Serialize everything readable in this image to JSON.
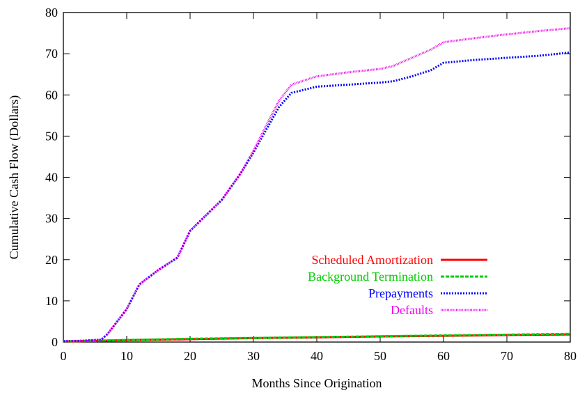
{
  "chart_data": {
    "type": "line",
    "title": "",
    "xlabel": "Months Since Origination",
    "ylabel": "Cumulative Cash Flow (Dollars)",
    "xlim": [
      0,
      80
    ],
    "ylim": [
      0,
      80
    ],
    "xticks": [
      0,
      10,
      20,
      30,
      40,
      50,
      60,
      70,
      80
    ],
    "yticks": [
      0,
      10,
      20,
      30,
      40,
      50,
      60,
      70,
      80
    ],
    "grid": false,
    "legend_position": "lower-right",
    "series": [
      {
        "name": "Scheduled Amortization",
        "color": "#ff0000",
        "style": "solid",
        "x": [
          0,
          10,
          20,
          30,
          40,
          50,
          60,
          70,
          80
        ],
        "y": [
          0.1,
          0.45,
          0.7,
          0.95,
          1.15,
          1.35,
          1.5,
          1.7,
          1.85
        ]
      },
      {
        "name": "Background Termination",
        "color": "#00cc00",
        "style": "dashed",
        "x": [
          0,
          10,
          20,
          30,
          40,
          50,
          60,
          70,
          80
        ],
        "y": [
          0.15,
          0.5,
          0.8,
          1.0,
          1.2,
          1.4,
          1.6,
          1.8,
          2.0
        ]
      },
      {
        "name": "Prepayments",
        "color": "#0000ff",
        "style": "dotted",
        "x": [
          0,
          3,
          6,
          7,
          10,
          12,
          15,
          18,
          20,
          22,
          25,
          28,
          30,
          32,
          34,
          36,
          40,
          45,
          50,
          52,
          55,
          58,
          60,
          65,
          70,
          75,
          80
        ],
        "y": [
          0.2,
          0.3,
          0.6,
          2.0,
          8.0,
          14.0,
          17.5,
          20.5,
          27.0,
          30.0,
          34.5,
          41.0,
          46.0,
          51.5,
          57.0,
          60.5,
          62.0,
          62.5,
          63.0,
          63.3,
          64.5,
          66.0,
          67.8,
          68.5,
          69.0,
          69.5,
          70.3
        ]
      },
      {
        "name": "Defaults",
        "color": "#ee00ee",
        "style": "dotted-fine",
        "x": [
          0,
          3,
          6,
          7,
          10,
          12,
          15,
          18,
          20,
          22,
          25,
          28,
          30,
          32,
          34,
          36,
          40,
          45,
          50,
          52,
          55,
          58,
          60,
          65,
          70,
          75,
          80
        ],
        "y": [
          0.2,
          0.3,
          0.6,
          2.0,
          8.0,
          14.0,
          17.5,
          20.5,
          27.0,
          30.0,
          34.5,
          41.0,
          46.5,
          52.5,
          58.5,
          62.5,
          64.5,
          65.5,
          66.3,
          67.0,
          69.0,
          71.0,
          72.8,
          73.8,
          74.7,
          75.5,
          76.2
        ]
      }
    ]
  }
}
